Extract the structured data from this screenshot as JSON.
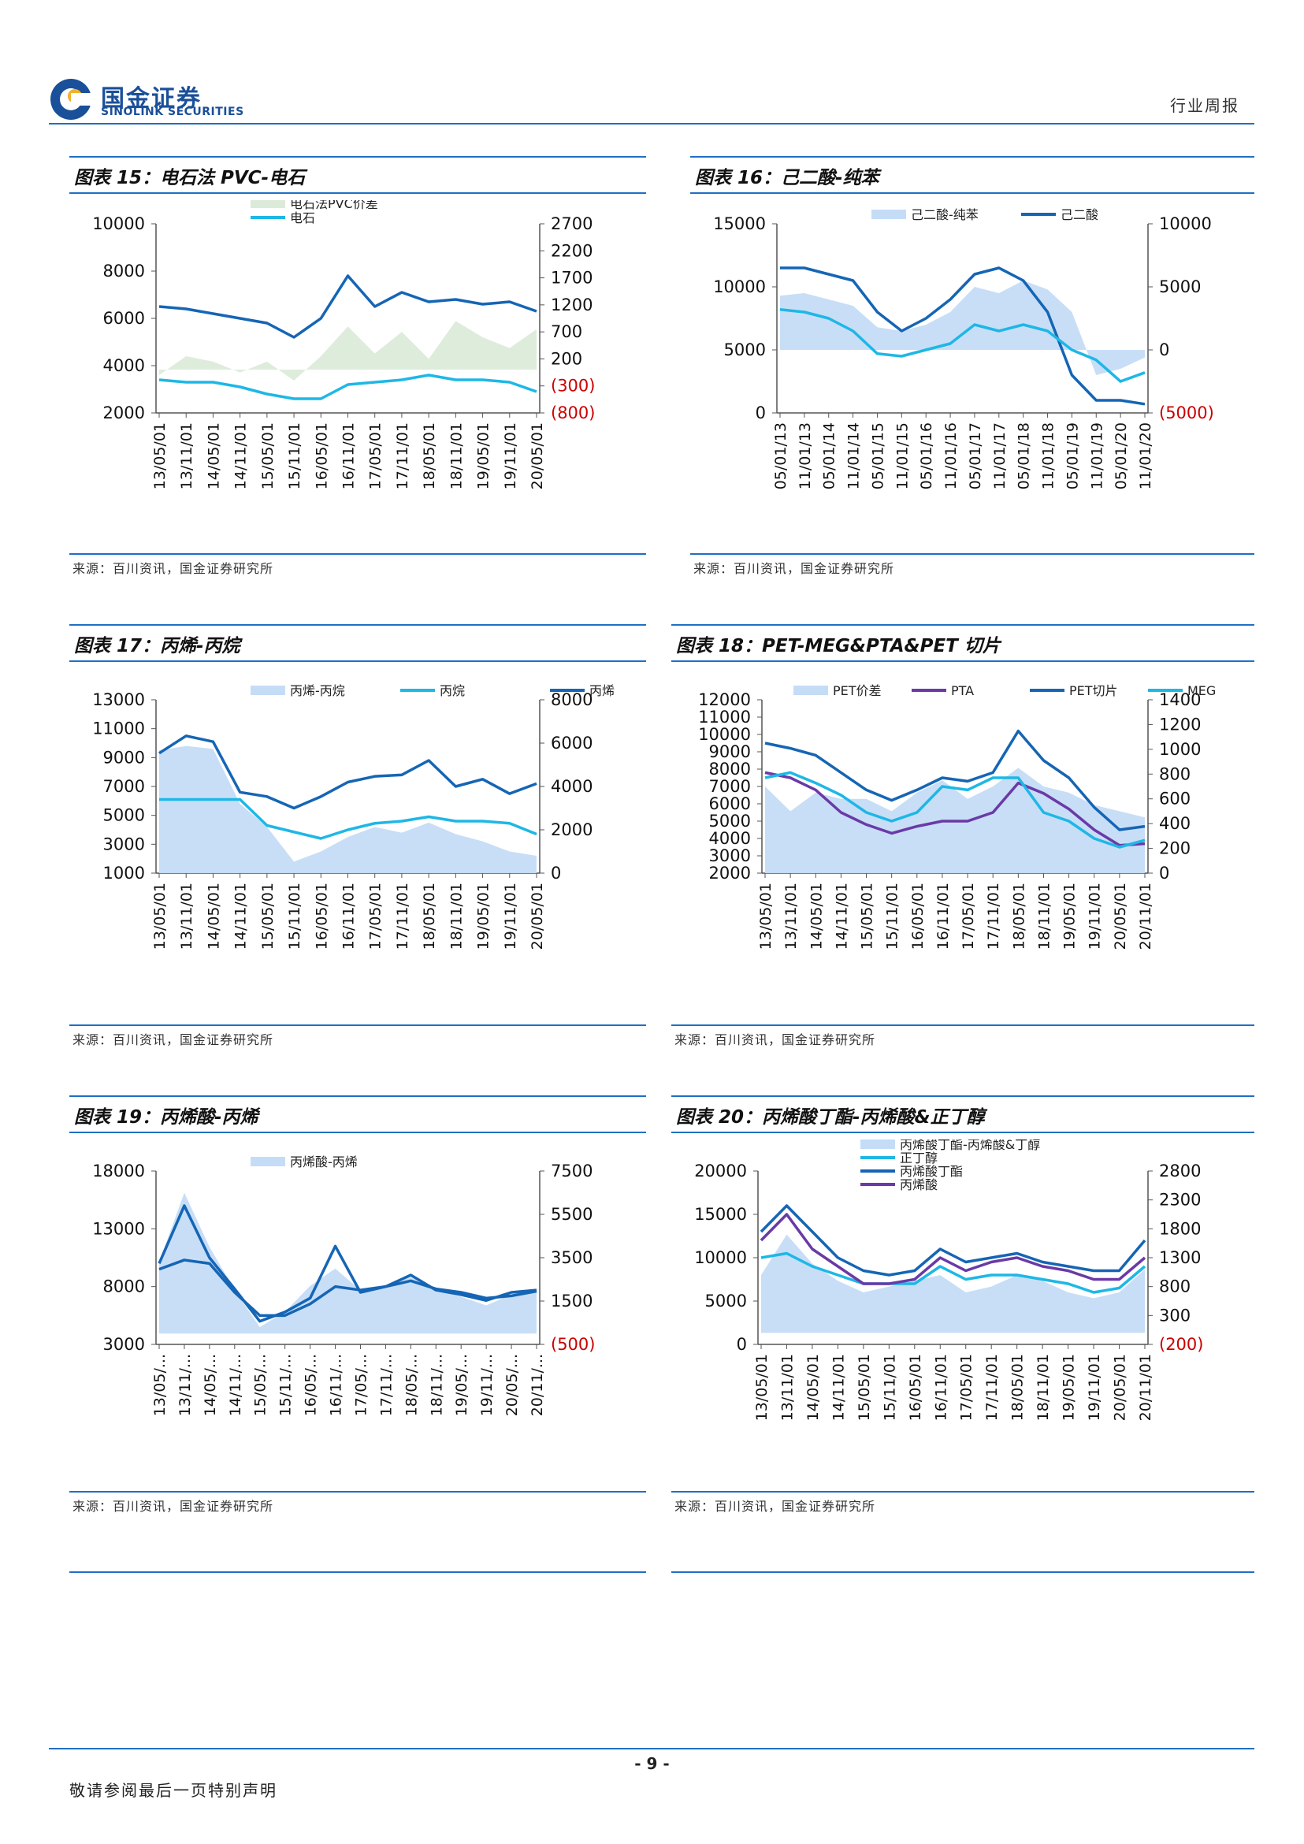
{
  "header": {
    "company_cn": "国金证券",
    "company_en": "SINOLINK SECURITIES",
    "report_type": "行业周报"
  },
  "colors": {
    "rule": "#1f6fc4",
    "area": "#c5dcf7",
    "area_green": "#dcebd9",
    "dark": "#1565b5",
    "light": "#1eb7e6",
    "purple": "#6a3aa6",
    "neg_tick": "#cc0000"
  },
  "charts": [
    {
      "title": "图表 15：电石法 PVC-电石",
      "source": "来源：百川资讯，国金证券研究所",
      "legend": [
        {
          "label": "电石法PVC价差",
          "kind": "area",
          "color": "#dcebd9"
        },
        {
          "label": "电石",
          "kind": "line",
          "color": "#1eb7e6"
        }
      ],
      "left_ticks": [
        "10000",
        "8000",
        "6000",
        "4000",
        "2000"
      ],
      "right_ticks": [
        "2700",
        "2200",
        "1700",
        "1200",
        "700",
        "200",
        "(300)",
        "(800)"
      ],
      "x_ticks": [
        "13/05/01",
        "13/11/01",
        "14/05/01",
        "14/11/01",
        "15/05/01",
        "15/11/01",
        "16/05/01",
        "16/11/01",
        "17/05/01",
        "17/11/01",
        "18/05/01",
        "18/11/01",
        "19/05/01",
        "19/11/01",
        "20/05/01"
      ]
    },
    {
      "title": "图表 16：己二酸-纯苯",
      "source": "来源：百川资讯，国金证券研究所",
      "legend": [
        {
          "label": "己二酸-纯苯",
          "kind": "area",
          "color": "#c5dcf7"
        },
        {
          "label": "己二酸",
          "kind": "line",
          "color": "#1565b5"
        }
      ],
      "left_ticks": [
        "15000",
        "10000",
        "5000",
        "0"
      ],
      "right_ticks": [
        "10000",
        "5000",
        "0",
        "(5000)"
      ],
      "x_ticks": [
        "05/01/13",
        "11/01/13",
        "05/01/14",
        "11/01/14",
        "05/01/15",
        "11/01/15",
        "05/01/16",
        "11/01/16",
        "05/01/17",
        "11/01/17",
        "05/01/18",
        "11/01/18",
        "05/01/19",
        "11/01/19",
        "05/01/20",
        "11/01/20"
      ]
    },
    {
      "title": "图表 17：丙烯-丙烷",
      "source": "来源：百川资讯，国金证券研究所",
      "legend": [
        {
          "label": "丙烯-丙烷",
          "kind": "area",
          "color": "#c5dcf7"
        },
        {
          "label": "丙烷",
          "kind": "line",
          "color": "#1eb7e6"
        },
        {
          "label": "丙烯",
          "kind": "line",
          "color": "#1565b5"
        }
      ],
      "left_ticks": [
        "13000",
        "11000",
        "9000",
        "7000",
        "5000",
        "3000",
        "1000"
      ],
      "right_ticks": [
        "8000",
        "6000",
        "4000",
        "2000",
        "0"
      ],
      "x_ticks": [
        "13/05/01",
        "13/11/01",
        "14/05/01",
        "14/11/01",
        "15/05/01",
        "15/11/01",
        "16/05/01",
        "16/11/01",
        "17/05/01",
        "17/11/01",
        "18/05/01",
        "18/11/01",
        "19/05/01",
        "19/11/01",
        "20/05/01"
      ]
    },
    {
      "title": "图表 18：PET-MEG&PTA&PET 切片",
      "source": "来源：百川资讯，国金证券研究所",
      "legend": [
        {
          "label": "PET价差",
          "kind": "area",
          "color": "#c5dcf7"
        },
        {
          "label": "PTA",
          "kind": "line",
          "color": "#6a3aa6"
        },
        {
          "label": "PET切片",
          "kind": "line",
          "color": "#1565b5"
        },
        {
          "label": "MEG",
          "kind": "line",
          "color": "#1eb7e6"
        }
      ],
      "left_ticks": [
        "12000",
        "11000",
        "10000",
        "9000",
        "8000",
        "7000",
        "6000",
        "5000",
        "4000",
        "3000",
        "2000"
      ],
      "right_ticks": [
        "1400",
        "1200",
        "1000",
        "800",
        "600",
        "400",
        "200",
        "0"
      ],
      "x_ticks": [
        "13/05/01",
        "13/11/01",
        "14/05/01",
        "14/11/01",
        "15/05/01",
        "15/11/01",
        "16/05/01",
        "16/11/01",
        "17/05/01",
        "17/11/01",
        "18/05/01",
        "18/11/01",
        "19/05/01",
        "19/11/01",
        "20/05/01",
        "20/11/01"
      ]
    },
    {
      "title": "图表 19：丙烯酸-丙烯",
      "source": "来源：百川资讯，国金证券研究所",
      "legend": [
        {
          "label": "丙烯酸-丙烯",
          "kind": "area",
          "color": "#c5dcf7"
        }
      ],
      "left_ticks": [
        "18000",
        "13000",
        "8000",
        "3000"
      ],
      "right_ticks": [
        "7500",
        "5500",
        "3500",
        "1500",
        "(500)"
      ],
      "x_ticks": [
        "13/05/...",
        "13/11/...",
        "14/05/...",
        "14/11/...",
        "15/05/...",
        "15/11/...",
        "16/05/...",
        "16/11/...",
        "17/05/...",
        "17/11/...",
        "18/05/...",
        "18/11/...",
        "19/05/...",
        "19/11/...",
        "20/05/...",
        "20/11/..."
      ]
    },
    {
      "title": "图表 20：丙烯酸丁酯-丙烯酸&正丁醇",
      "source": "来源：百川资讯，国金证券研究所",
      "legend": [
        {
          "label": "丙烯酸丁酯-丙烯酸&丁醇",
          "kind": "area",
          "color": "#c5dcf7"
        },
        {
          "label": "正丁醇",
          "kind": "line",
          "color": "#1eb7e6"
        },
        {
          "label": "丙烯酸丁酯",
          "kind": "line",
          "color": "#1565b5"
        },
        {
          "label": "丙烯酸",
          "kind": "line",
          "color": "#6a3aa6"
        }
      ],
      "left_ticks": [
        "20000",
        "15000",
        "10000",
        "5000",
        "0"
      ],
      "right_ticks": [
        "2800",
        "2300",
        "1800",
        "1300",
        "800",
        "300",
        "(200)"
      ],
      "x_ticks": [
        "13/05/01",
        "13/11/01",
        "14/05/01",
        "14/11/01",
        "15/05/01",
        "15/11/01",
        "16/05/01",
        "16/11/01",
        "17/05/01",
        "17/11/01",
        "18/05/01",
        "18/11/01",
        "19/05/01",
        "19/11/01",
        "20/05/01",
        "20/11/01"
      ]
    }
  ],
  "chart_data": [
    {
      "type": "line",
      "title": "图表 15：电石法 PVC-电石",
      "x": [
        "13/05/01",
        "13/11/01",
        "14/05/01",
        "14/11/01",
        "15/05/01",
        "15/11/01",
        "16/05/01",
        "16/11/01",
        "17/05/01",
        "17/11/01",
        "18/05/01",
        "18/11/01",
        "19/05/01",
        "19/11/01",
        "20/05/01"
      ],
      "ylim_left": [
        2000,
        10000
      ],
      "ylim_right": [
        -800,
        2700
      ],
      "series": [
        {
          "name": "电石法PVC价差",
          "axis": "right",
          "kind": "area",
          "values": [
            -100,
            250,
            150,
            -50,
            150,
            -200,
            250,
            800,
            300,
            700,
            200,
            900,
            600,
            400,
            750
          ]
        },
        {
          "name": "电石",
          "axis": "left",
          "kind": "line",
          "values": [
            3400,
            3300,
            3300,
            3100,
            2800,
            2600,
            2600,
            3200,
            3300,
            3400,
            3600,
            3400,
            3400,
            3300,
            2900
          ]
        },
        {
          "axis": "left",
          "kind": "line",
          "values": [
            6500,
            6400,
            6200,
            6000,
            5800,
            5200,
            6000,
            7800,
            6500,
            7100,
            6700,
            6800,
            6600,
            6700,
            6300
          ]
        }
      ]
    },
    {
      "type": "line",
      "title": "图表 16：己二酸-纯苯",
      "x": [
        "05/01/13",
        "11/01/13",
        "05/01/14",
        "11/01/14",
        "05/01/15",
        "11/01/15",
        "05/01/16",
        "11/01/16",
        "05/01/17",
        "11/01/17",
        "05/01/18",
        "11/01/18",
        "05/01/19",
        "11/01/19",
        "05/01/20",
        "11/01/20"
      ],
      "ylim_left": [
        0,
        15000
      ],
      "ylim_right": [
        -5000,
        10000
      ],
      "series": [
        {
          "name": "己二酸-纯苯",
          "axis": "right",
          "kind": "area",
          "values": [
            4300,
            4500,
            4000,
            3500,
            1800,
            1500,
            2000,
            3000,
            5000,
            4500,
            5500,
            4800,
            3000,
            -2000,
            -1500,
            -600
          ]
        },
        {
          "name": "己二酸",
          "axis": "left",
          "kind": "line",
          "values": [
            11500,
            11500,
            11000,
            10500,
            8000,
            6500,
            7500,
            9000,
            11000,
            11500,
            10500,
            8000,
            3000,
            1000,
            1000,
            700
          ]
        },
        {
          "axis": "right",
          "kind": "line",
          "values": [
            3200,
            3000,
            2500,
            1500,
            -300,
            -500,
            0,
            500,
            2000,
            1500,
            2000,
            1500,
            0,
            -800,
            -2500,
            -1800
          ]
        }
      ]
    },
    {
      "type": "line",
      "title": "图表 17：丙烯-丙烷",
      "x": [
        "13/05/01",
        "13/11/01",
        "14/05/01",
        "14/11/01",
        "15/05/01",
        "15/11/01",
        "16/05/01",
        "16/11/01",
        "17/05/01",
        "17/11/01",
        "18/05/01",
        "18/11/01",
        "19/05/01",
        "19/11/01",
        "20/05/01"
      ],
      "ylim_left": [
        1000,
        13000
      ],
      "ylim_right": [
        0,
        8000
      ],
      "series": [
        {
          "name": "丙烯-丙烷",
          "axis": "left",
          "kind": "area",
          "values": [
            9500,
            9800,
            9600,
            5800,
            4200,
            1800,
            2500,
            3500,
            4200,
            3800,
            4500,
            3700,
            3200,
            2500,
            2200
          ]
        },
        {
          "name": "丙烷",
          "axis": "right",
          "kind": "line",
          "values": [
            3400,
            3400,
            3400,
            3400,
            2200,
            1900,
            1600,
            2000,
            2300,
            2400,
            2600,
            2400,
            2400,
            2300,
            1800
          ]
        },
        {
          "name": "丙烯",
          "axis": "left",
          "kind": "line",
          "values": [
            9300,
            10500,
            10100,
            6600,
            6300,
            5500,
            6300,
            7300,
            7700,
            7800,
            8800,
            7000,
            7500,
            6500,
            7200
          ]
        }
      ]
    },
    {
      "type": "line",
      "title": "图表 18：PET-MEG&PTA&PET 切片",
      "x": [
        "13/05/01",
        "13/11/01",
        "14/05/01",
        "14/11/01",
        "15/05/01",
        "15/11/01",
        "16/05/01",
        "16/11/01",
        "17/05/01",
        "17/11/01",
        "18/05/01",
        "18/11/01",
        "19/05/01",
        "19/11/01",
        "20/05/01",
        "20/11/01"
      ],
      "ylim_left": [
        2000,
        12000
      ],
      "ylim_right": [
        0,
        1400
      ],
      "series": [
        {
          "name": "PET价差",
          "axis": "right",
          "kind": "area",
          "values": [
            700,
            500,
            650,
            600,
            600,
            500,
            650,
            750,
            600,
            700,
            850,
            700,
            650,
            550,
            500,
            450
          ]
        },
        {
          "name": "PTA",
          "axis": "left",
          "kind": "line",
          "values": [
            7800,
            7500,
            6800,
            5500,
            4800,
            4300,
            4700,
            5000,
            5000,
            5500,
            7200,
            6600,
            5700,
            4500,
            3600,
            3700
          ]
        },
        {
          "name": "PET切片",
          "axis": "left",
          "kind": "line",
          "values": [
            9500,
            9200,
            8800,
            7800,
            6800,
            6200,
            6800,
            7500,
            7300,
            7800,
            10200,
            8500,
            7500,
            5800,
            4500,
            4700
          ]
        },
        {
          "name": "MEG",
          "axis": "left",
          "kind": "line",
          "values": [
            7500,
            7800,
            7200,
            6500,
            5500,
            5000,
            5500,
            7000,
            6800,
            7500,
            7500,
            5500,
            5000,
            4000,
            3500,
            3900
          ]
        }
      ]
    },
    {
      "type": "line",
      "title": "图表 19：丙烯酸-丙烯",
      "x": [
        "13/05/...",
        "13/11/...",
        "14/05/...",
        "14/11/...",
        "15/05/...",
        "15/11/...",
        "16/05/...",
        "16/11/...",
        "17/05/...",
        "17/11/...",
        "18/05/...",
        "18/11/...",
        "19/05/...",
        "19/11/...",
        "20/05/...",
        "20/11/..."
      ],
      "ylim_left": [
        3000,
        18000
      ],
      "ylim_right": [
        -500,
        7500
      ],
      "series": [
        {
          "name": "丙烯酸-丙烯",
          "axis": "right",
          "kind": "area",
          "values": [
            3300,
            6500,
            4000,
            2000,
            300,
            1000,
            2200,
            3000,
            2000,
            2200,
            2600,
            2000,
            1700,
            1300,
            1800,
            2000
          ]
        },
        {
          "axis": "left",
          "kind": "line",
          "values": [
            10000,
            15000,
            10500,
            7800,
            5000,
            5800,
            7000,
            11500,
            7500,
            8000,
            9000,
            7700,
            7300,
            6800,
            7500,
            7700
          ]
        },
        {
          "axis": "left",
          "kind": "line",
          "values": [
            9500,
            10300,
            10000,
            7500,
            5500,
            5500,
            6500,
            8000,
            7700,
            8000,
            8500,
            7800,
            7500,
            7000,
            7200,
            7600
          ]
        }
      ]
    },
    {
      "type": "line",
      "title": "图表 20：丙烯酸丁酯-丙烯酸&正丁醇",
      "x": [
        "13/05/01",
        "13/11/01",
        "14/05/01",
        "14/11/01",
        "15/05/01",
        "15/11/01",
        "16/05/01",
        "16/11/01",
        "17/05/01",
        "17/11/01",
        "18/05/01",
        "18/11/01",
        "19/05/01",
        "19/11/01",
        "20/05/01",
        "20/11/01"
      ],
      "ylim_left": [
        0,
        20000
      ],
      "ylim_right": [
        -200,
        2800
      ],
      "series": [
        {
          "name": "丙烯酸丁酯-丙烯酸&丁醇",
          "axis": "right",
          "kind": "area",
          "values": [
            1000,
            1700,
            1200,
            900,
            700,
            800,
            900,
            1000,
            700,
            800,
            1000,
            900,
            700,
            600,
            700,
            1100
          ]
        },
        {
          "name": "正丁醇",
          "axis": "left",
          "kind": "line",
          "values": [
            10000,
            10500,
            9000,
            8000,
            7000,
            7000,
            7000,
            9000,
            7500,
            8000,
            8000,
            7500,
            7000,
            6000,
            6500,
            9000
          ]
        },
        {
          "name": "丙烯酸丁酯",
          "axis": "left",
          "kind": "line",
          "values": [
            13000,
            16000,
            13000,
            10000,
            8500,
            8000,
            8500,
            11000,
            9500,
            10000,
            10500,
            9500,
            9000,
            8500,
            8500,
            12000
          ]
        },
        {
          "name": "丙烯酸",
          "axis": "left",
          "kind": "line",
          "values": [
            12000,
            15000,
            11000,
            9000,
            7000,
            7000,
            7500,
            10000,
            8500,
            9500,
            10000,
            9000,
            8500,
            7500,
            7500,
            10000
          ]
        }
      ]
    }
  ],
  "footer": {
    "page": "- 9 -",
    "disclaimer": "敬请参阅最后一页特别声明"
  }
}
